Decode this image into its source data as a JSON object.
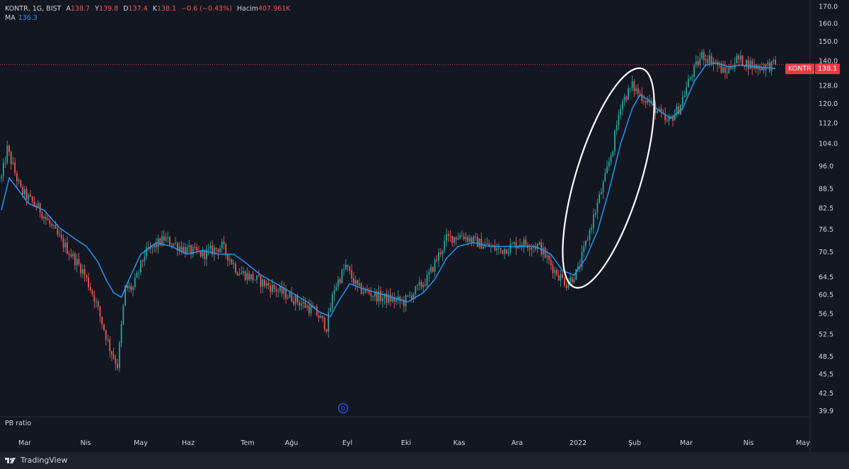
{
  "header": {
    "symbol": "KONTR, 1G, BIST",
    "open_label": "A",
    "open": "138.7",
    "high_label": "Y",
    "high": "139.8",
    "low_label": "D",
    "low": "137.4",
    "close_label": "K",
    "close": "138.1",
    "change": "−0.6 (−0.43%)",
    "volume_label": "Hacim",
    "volume": "407.961K"
  },
  "ma": {
    "label": "MA",
    "value": "136.3"
  },
  "pane2": {
    "label": "PB ratio"
  },
  "price_tag": {
    "symbol": "KONTR",
    "price": "138.1"
  },
  "colors": {
    "up": "#26a69a",
    "down": "#ef5350",
    "ma": "#2196f3",
    "background": "#131722",
    "annotation": "#ffffff"
  },
  "footer": {
    "brand": "TradingView"
  },
  "dividend_marker": "D",
  "chart_data": {
    "type": "candlestick",
    "y_ticks": [
      "170.0",
      "160.0",
      "150.0",
      "140.0",
      "128.0",
      "120.0",
      "112.0",
      "104.0",
      "96.0",
      "88.5",
      "82.5",
      "76.5",
      "70.5",
      "64.5",
      "60.5",
      "56.5",
      "52.5",
      "48.5",
      "45.5",
      "42.5",
      "39.9"
    ],
    "y_scale": "log",
    "ylim": [
      39.5,
      172
    ],
    "x_ticks": [
      "Mar",
      "Nis",
      "May",
      "Haz",
      "Tem",
      "Ağu",
      "Eyl",
      "Eki",
      "Kas",
      "Ara",
      "2022",
      "Şub",
      "Mar",
      "Nis",
      "May"
    ],
    "last_price": 138.1,
    "price_keypoints": [
      [
        0,
        92
      ],
      [
        3,
        102
      ],
      [
        10,
        88
      ],
      [
        20,
        82
      ],
      [
        30,
        74
      ],
      [
        36,
        70
      ],
      [
        42,
        66
      ],
      [
        48,
        60
      ],
      [
        56,
        50
      ],
      [
        60,
        47
      ],
      [
        64,
        62
      ],
      [
        68,
        62
      ],
      [
        74,
        70
      ],
      [
        84,
        74
      ],
      [
        96,
        71
      ],
      [
        104,
        70
      ],
      [
        114,
        72
      ],
      [
        122,
        66
      ],
      [
        136,
        63
      ],
      [
        150,
        60
      ],
      [
        162,
        57
      ],
      [
        168,
        54
      ],
      [
        172,
        62
      ],
      [
        178,
        67
      ],
      [
        184,
        62
      ],
      [
        196,
        60
      ],
      [
        208,
        59
      ],
      [
        220,
        64
      ],
      [
        230,
        74
      ],
      [
        238,
        75
      ],
      [
        246,
        73
      ],
      [
        258,
        71
      ],
      [
        268,
        73
      ],
      [
        278,
        72
      ],
      [
        286,
        66
      ],
      [
        292,
        63
      ],
      [
        298,
        66
      ],
      [
        306,
        80
      ],
      [
        312,
        92
      ],
      [
        316,
        103
      ],
      [
        320,
        120
      ],
      [
        326,
        128
      ],
      [
        330,
        124
      ],
      [
        336,
        120
      ],
      [
        344,
        112
      ],
      [
        350,
        118
      ],
      [
        356,
        132
      ],
      [
        362,
        143
      ],
      [
        368,
        140
      ],
      [
        374,
        134
      ],
      [
        380,
        141
      ],
      [
        390,
        137
      ],
      [
        400,
        138
      ]
    ],
    "ma_keypoints": [
      [
        0,
        82
      ],
      [
        4,
        92
      ],
      [
        9,
        88
      ],
      [
        14,
        84
      ],
      [
        22,
        82
      ],
      [
        30,
        77
      ],
      [
        38,
        74
      ],
      [
        44,
        72
      ],
      [
        50,
        68
      ],
      [
        54,
        64
      ],
      [
        58,
        61
      ],
      [
        62,
        60
      ],
      [
        66,
        64
      ],
      [
        72,
        70
      ],
      [
        80,
        73
      ],
      [
        88,
        72
      ],
      [
        96,
        70
      ],
      [
        104,
        71
      ],
      [
        112,
        70
      ],
      [
        120,
        70
      ],
      [
        126,
        68
      ],
      [
        134,
        65
      ],
      [
        142,
        63
      ],
      [
        150,
        61
      ],
      [
        158,
        59
      ],
      [
        164,
        57
      ],
      [
        170,
        56
      ],
      [
        174,
        59
      ],
      [
        180,
        63
      ],
      [
        186,
        62
      ],
      [
        194,
        61
      ],
      [
        202,
        60
      ],
      [
        210,
        59
      ],
      [
        218,
        61
      ],
      [
        224,
        64
      ],
      [
        230,
        69
      ],
      [
        236,
        72
      ],
      [
        244,
        73
      ],
      [
        252,
        72
      ],
      [
        260,
        72
      ],
      [
        268,
        72
      ],
      [
        276,
        72
      ],
      [
        284,
        70
      ],
      [
        290,
        66
      ],
      [
        296,
        65
      ],
      [
        302,
        69
      ],
      [
        308,
        76
      ],
      [
        314,
        88
      ],
      [
        320,
        104
      ],
      [
        326,
        118
      ],
      [
        330,
        124
      ],
      [
        334,
        122
      ],
      [
        340,
        117
      ],
      [
        346,
        114
      ],
      [
        352,
        118
      ],
      [
        358,
        130
      ],
      [
        364,
        138
      ],
      [
        370,
        139
      ],
      [
        376,
        137
      ],
      [
        382,
        138
      ],
      [
        390,
        137
      ],
      [
        400,
        136.3
      ]
    ]
  }
}
